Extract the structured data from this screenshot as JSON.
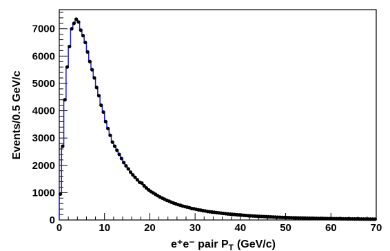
{
  "chart_data": {
    "type": "line",
    "xlabel": "e⁺e⁻ pair P",
    "xlabel_sub": "T",
    "xlabel_unit": "(GeV/c)",
    "ylabel": "Events/0.5 GeV/c",
    "xlim": [
      0,
      70
    ],
    "ylim": [
      0,
      7700
    ],
    "xticks": [
      0,
      10,
      20,
      30,
      40,
      50,
      60,
      70
    ],
    "yticks": [
      0,
      1000,
      2000,
      3000,
      4000,
      5000,
      6000,
      7000
    ],
    "grid": false,
    "bin_width": 0.5,
    "series": [
      {
        "style": "histogram",
        "color": "#1a1adb"
      },
      {
        "style": "markers",
        "color": "#000000"
      }
    ],
    "points": [
      [
        0.25,
        950
      ],
      [
        0.75,
        2700
      ],
      [
        1.25,
        4400
      ],
      [
        1.75,
        5600
      ],
      [
        2.25,
        6350
      ],
      [
        2.75,
        7000
      ],
      [
        3.25,
        7200
      ],
      [
        3.75,
        7350
      ],
      [
        4.25,
        7250
      ],
      [
        4.75,
        6950
      ],
      [
        5.25,
        6750
      ],
      [
        5.75,
        6500
      ],
      [
        6.25,
        6150
      ],
      [
        6.75,
        5800
      ],
      [
        7.25,
        5500
      ],
      [
        7.75,
        5200
      ],
      [
        8.25,
        4850
      ],
      [
        8.75,
        4550
      ],
      [
        9.25,
        4200
      ],
      [
        9.75,
        3950
      ],
      [
        10.25,
        3600
      ],
      [
        10.75,
        3350
      ],
      [
        11.25,
        3100
      ],
      [
        11.75,
        2850
      ],
      [
        12.25,
        2700
      ],
      [
        12.75,
        2550
      ],
      [
        13.25,
        2400
      ],
      [
        13.75,
        2250
      ],
      [
        14.25,
        2100
      ],
      [
        14.75,
        1980
      ],
      [
        15.25,
        1870
      ],
      [
        15.75,
        1750
      ],
      [
        16.25,
        1650
      ],
      [
        16.75,
        1560
      ],
      [
        17.25,
        1470
      ],
      [
        17.75,
        1380
      ],
      [
        18.25,
        1350
      ],
      [
        18.75,
        1250
      ],
      [
        19.25,
        1170
      ],
      [
        19.75,
        1100
      ],
      [
        20.25,
        1040
      ],
      [
        20.75,
        990
      ],
      [
        21.25,
        940
      ],
      [
        21.75,
        890
      ],
      [
        22.25,
        840
      ],
      [
        22.75,
        800
      ],
      [
        23.25,
        760
      ],
      [
        23.75,
        720
      ],
      [
        24.25,
        690
      ],
      [
        24.75,
        650
      ],
      [
        25.25,
        620
      ],
      [
        25.75,
        590
      ],
      [
        26.25,
        560
      ],
      [
        26.75,
        540
      ],
      [
        27.25,
        510
      ],
      [
        27.75,
        490
      ],
      [
        28.25,
        470
      ],
      [
        28.75,
        450
      ],
      [
        29.25,
        420
      ],
      [
        29.75,
        410
      ],
      [
        30.25,
        390
      ],
      [
        30.75,
        370
      ],
      [
        31.25,
        360
      ],
      [
        31.75,
        340
      ],
      [
        32.25,
        330
      ],
      [
        32.75,
        310
      ],
      [
        33.25,
        300
      ],
      [
        33.75,
        290
      ],
      [
        34.25,
        280
      ],
      [
        34.75,
        270
      ],
      [
        35.25,
        260
      ],
      [
        35.75,
        250
      ],
      [
        36.25,
        240
      ],
      [
        36.75,
        230
      ],
      [
        37.25,
        220
      ],
      [
        37.75,
        215
      ],
      [
        38.25,
        205
      ],
      [
        38.75,
        200
      ],
      [
        39.25,
        190
      ],
      [
        39.75,
        185
      ],
      [
        40.25,
        178
      ],
      [
        40.75,
        170
      ],
      [
        41.25,
        165
      ],
      [
        41.75,
        158
      ],
      [
        42.25,
        152
      ],
      [
        42.75,
        147
      ],
      [
        43.25,
        142
      ],
      [
        43.75,
        137
      ],
      [
        44.25,
        132
      ],
      [
        44.75,
        128
      ],
      [
        45.25,
        124
      ],
      [
        45.75,
        120
      ],
      [
        46.25,
        116
      ],
      [
        46.75,
        112
      ],
      [
        47.25,
        108
      ],
      [
        47.75,
        105
      ],
      [
        48.25,
        101
      ],
      [
        48.75,
        98
      ],
      [
        49.25,
        95
      ],
      [
        49.75,
        92
      ],
      [
        50.25,
        89
      ],
      [
        50.75,
        86
      ],
      [
        51.25,
        84
      ],
      [
        51.75,
        81
      ],
      [
        52.25,
        79
      ],
      [
        52.75,
        76
      ],
      [
        53.25,
        74
      ],
      [
        53.75,
        72
      ],
      [
        54.25,
        70
      ],
      [
        54.75,
        68
      ],
      [
        55.25,
        66
      ],
      [
        55.75,
        64
      ],
      [
        56.25,
        62
      ],
      [
        56.75,
        60
      ],
      [
        57.25,
        58
      ],
      [
        57.75,
        57
      ],
      [
        58.25,
        55
      ],
      [
        58.75,
        54
      ],
      [
        59.25,
        52
      ],
      [
        59.75,
        51
      ],
      [
        60.25,
        49
      ],
      [
        60.75,
        48
      ],
      [
        61.25,
        47
      ],
      [
        61.75,
        46
      ],
      [
        62.25,
        44
      ],
      [
        62.75,
        43
      ],
      [
        63.25,
        42
      ],
      [
        63.75,
        41
      ],
      [
        64.25,
        40
      ],
      [
        64.75,
        39
      ],
      [
        65.25,
        38
      ],
      [
        65.75,
        37
      ],
      [
        66.25,
        36
      ],
      [
        66.75,
        35
      ],
      [
        67.25,
        34
      ],
      [
        67.75,
        33
      ],
      [
        68.25,
        33
      ],
      [
        68.75,
        32
      ],
      [
        69.25,
        31
      ],
      [
        69.75,
        30
      ]
    ]
  }
}
